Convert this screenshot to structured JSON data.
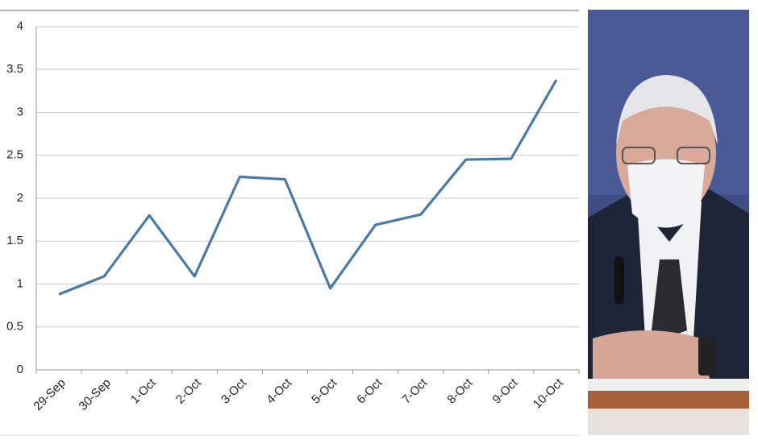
{
  "chart_data": {
    "type": "line",
    "categories": [
      "29-Sep",
      "30-Sep",
      "1-Oct",
      "2-Oct",
      "3-Oct",
      "4-Oct",
      "5-Oct",
      "6-Oct",
      "7-Oct",
      "8-Oct",
      "9-Oct",
      "10-Oct"
    ],
    "values": [
      0.88,
      1.09,
      1.8,
      1.09,
      2.25,
      2.22,
      0.95,
      1.69,
      1.81,
      2.45,
      2.46,
      3.38
    ],
    "color": "#4a7aa8",
    "ylim": [
      0,
      4
    ],
    "yticks": [
      0,
      0.5,
      1,
      1.5,
      2,
      2.5,
      3,
      3.5,
      4
    ],
    "grid": true
  }
}
